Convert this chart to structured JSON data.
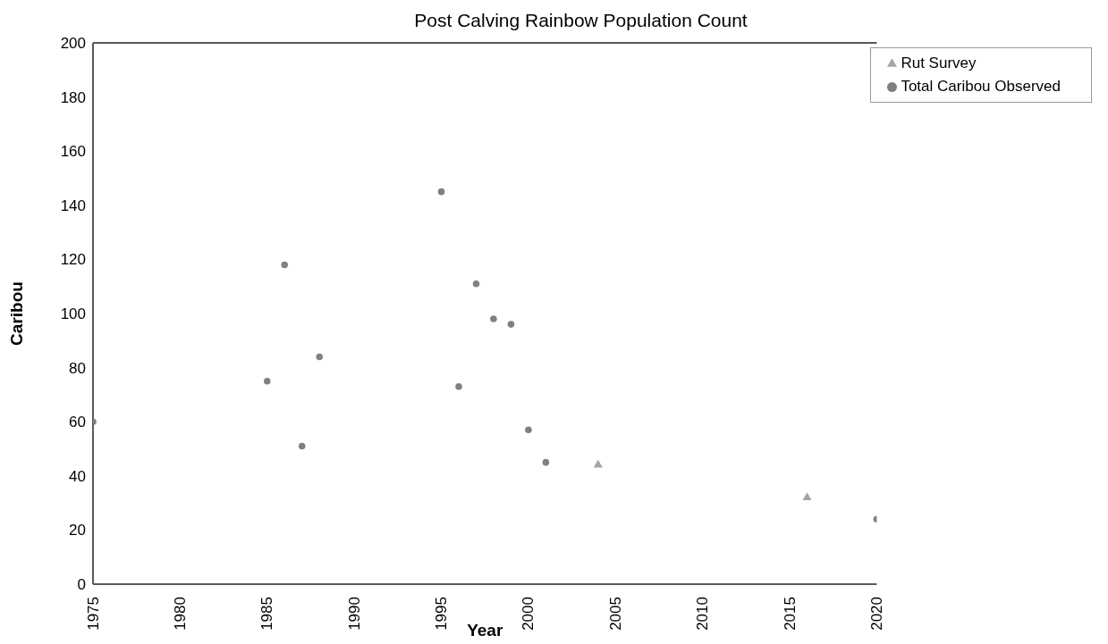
{
  "chart_data": {
    "type": "scatter",
    "title": "Post Calving Rainbow Population Count",
    "xlabel": "Year",
    "ylabel": "Caribou",
    "series": [
      {
        "name": "Total Caribou Observed",
        "color": "#808080",
        "marker": "circle",
        "x": [
          1975,
          1985,
          1986,
          1987,
          1988,
          1995,
          1996,
          1997,
          1998,
          1999,
          2000,
          2001,
          2020
        ],
        "values": [
          60,
          75,
          118,
          51,
          84,
          145,
          73,
          111,
          98,
          96,
          57,
          45,
          24
        ]
      },
      {
        "name": "Rut Survey",
        "color": "#a6a6a6",
        "marker": "triangle",
        "x": [
          2004,
          2016
        ],
        "values": [
          44,
          32
        ]
      }
    ],
    "xlim": [
      1975,
      2020
    ],
    "xticks": [
      1975,
      1980,
      1985,
      1990,
      1995,
      2000,
      2005,
      2010,
      2015,
      2020
    ],
    "ylim": [
      0,
      200
    ],
    "yticks": [
      0,
      20,
      40,
      60,
      80,
      100,
      120,
      140,
      160,
      180,
      200
    ],
    "grid": false,
    "legend": "top right"
  }
}
